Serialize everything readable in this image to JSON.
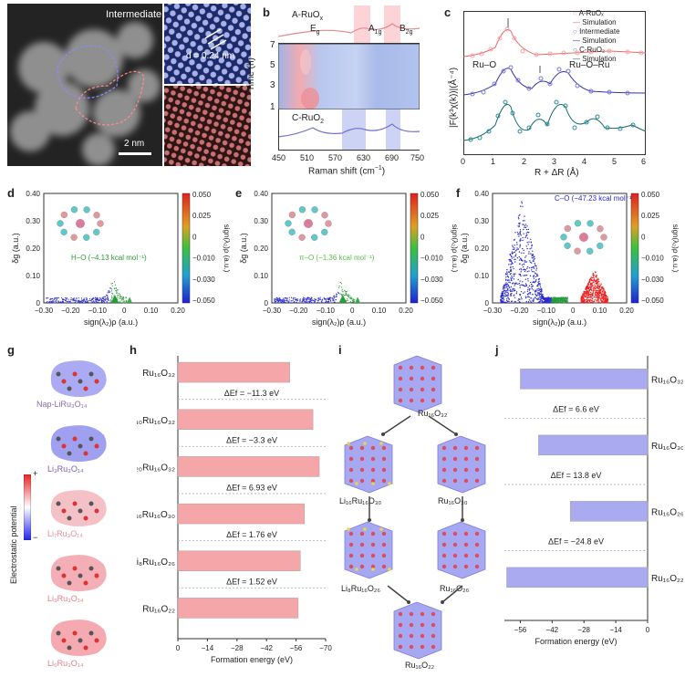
{
  "figure": {
    "panels": [
      "a",
      "b",
      "c",
      "d",
      "e",
      "f",
      "g",
      "h",
      "i",
      "j"
    ]
  },
  "panel_a": {
    "label": "a",
    "title": "Intermediate",
    "d_spacing": "d = 0.24 nm",
    "scale_bar": "2 nm"
  },
  "panel_b": {
    "label": "b",
    "top_label": "A-RuO",
    "top_label_sub": "x",
    "bottom_label": "C-RuO",
    "bottom_label_sub": "2",
    "modes": [
      {
        "main": "E",
        "sub": "g"
      },
      {
        "main": "A",
        "sub": "1g"
      },
      {
        "main": "B",
        "sub": "2g"
      }
    ],
    "time_ylabel": "Time (h)",
    "time_ticks": [
      "7",
      "5",
      "3",
      "1"
    ],
    "xlabel": "Raman shift (cm",
    "xlabel_tail": ")",
    "x_ticks": [
      "450",
      "510",
      "570",
      "630",
      "690",
      "750"
    ]
  },
  "panel_c": {
    "label": "c",
    "ylabel": "|F(k³χ(k))|(Å⁻⁴)",
    "xlabel": "R + ΔR (Å)",
    "x_ticks": [
      "0",
      "1",
      "2",
      "3",
      "4",
      "5",
      "6"
    ],
    "annotations": [
      "Ru–O",
      "Ru–O–Ru"
    ],
    "legend": [
      "A-RuOₓ",
      "Simulation",
      "Intermediate",
      "Simulation",
      "C-RuO₂",
      "Simulation"
    ]
  },
  "panel_d": {
    "label": "d",
    "ylabel": "δg (a.u.)",
    "xlabel": "sign(λ₂)ρ (a.u.)",
    "y_ticks": [
      "0.40",
      "0.30",
      "0.20",
      "0.10",
      "0"
    ],
    "x_ticks": [
      "−0.30",
      "−0.20",
      "−0.10",
      "0",
      "0.10",
      "0.20"
    ],
    "annotation": "H–O (−4.13 kcal mol⁻¹)",
    "colorbar_ticks": [
      "0.050",
      "0.025",
      "0",
      "−0.010",
      "−0.030",
      "−0.050"
    ],
    "colorbar_label": "sign(λ₂)ρ (a.u.)"
  },
  "panel_e": {
    "label": "e",
    "ylabel": "δg (a.u.)",
    "xlabel": "sign(λ₂)ρ (a.u.)",
    "y_ticks": [
      "0.40",
      "0.30",
      "0.20",
      "0.10",
      "0"
    ],
    "x_ticks": [
      "−0.30",
      "−0.20",
      "−0.10",
      "0",
      "0.10",
      "0.20"
    ],
    "annotation": "π–O (−1.36 kcal mol⁻¹)",
    "colorbar_ticks": [
      "0.050",
      "0.025",
      "0",
      "−0.010",
      "−0.030",
      "−0.050"
    ],
    "colorbar_label": "sign(λ₂)ρ (a.u.)"
  },
  "panel_f": {
    "label": "f",
    "ylabel": "δg (a.u.)",
    "xlabel": "sign(λ₂)ρ (a.u.)",
    "y_ticks": [
      "0.40",
      "0.30",
      "0.20",
      "0.10",
      "0"
    ],
    "x_ticks": [
      "−0.30",
      "−0.20",
      "−0.10",
      "0",
      "0.10",
      "0.20"
    ],
    "annotation": "C–O (−47.23 kcal mol⁻¹)",
    "colorbar_ticks": [
      "0.050",
      "0.025",
      "0",
      "−0.010",
      "−0.030",
      "−0.050"
    ],
    "colorbar_label": "sign(λ₂)ρ (a.u.)"
  },
  "panel_g": {
    "label": "g",
    "ylabel": "Electrostatic potential",
    "plus": "+",
    "minus": "−",
    "molecules": [
      "Nap-LiRu₃O₁₄",
      "Li₃Ru₃O₁₄",
      "Li₇Ru₃O₁₄",
      "Li₉Ru₃O₁₄",
      "Li₆Ru₃O₁₄"
    ]
  },
  "panel_i": {
    "label": "i",
    "structures": [
      "Ru₁₆O₃₂",
      "Li₁₆Ru₁₆O₃₀",
      "Ru₁₆O₃₀",
      "Li₈Ru₁₆O₂₆",
      "Ru₁₆O₂₆",
      "Ru₁₆O₂₂"
    ]
  },
  "chart_data": [
    {
      "panel": "h",
      "type": "bar",
      "orientation": "horizontal",
      "categories": [
        "Ru₁₆O₃₂",
        "Li₁₀Ru₁₆O₃₂",
        "Li₂₀Ru₁₆O₃₂",
        "Li₁₆Ru₁₆O₃₀",
        "Li₈Ru₁₆O₂₆",
        "Ru₁₆O₂₂"
      ],
      "values": [
        -53,
        -64,
        -67,
        -60,
        -58,
        -57
      ],
      "annotations": [
        "ΔEf = −11.3 eV",
        "ΔEf = −3.3 eV",
        "ΔEf = 6.93 eV",
        "ΔEf = 1.76 eV",
        "ΔEf = 1.52 eV"
      ],
      "xlabel": "Formation energy (eV)",
      "x_ticks": [
        "0",
        "−14",
        "−28",
        "−42",
        "−56",
        "−70"
      ],
      "xlim": [
        0,
        -70
      ],
      "color": "#f4a6a9"
    },
    {
      "panel": "j",
      "type": "bar",
      "orientation": "horizontal",
      "categories": [
        "Ru₁₆O₃₂",
        "Ru₁₆O₃₀",
        "Ru₁₆O₂₆",
        "Ru₁₆O₂₂"
      ],
      "values": [
        -56,
        -48,
        -34,
        -62
      ],
      "annotations": [
        "ΔEf = 6.6 eV",
        "ΔEf = 13.8 eV",
        "ΔEf = −24.8 eV"
      ],
      "xlabel": "Formation energy (eV)",
      "x_ticks": [
        "−56",
        "−42",
        "−28",
        "−14",
        "0"
      ],
      "xlim": [
        -63,
        0
      ],
      "color": "#aaaaf0"
    }
  ]
}
